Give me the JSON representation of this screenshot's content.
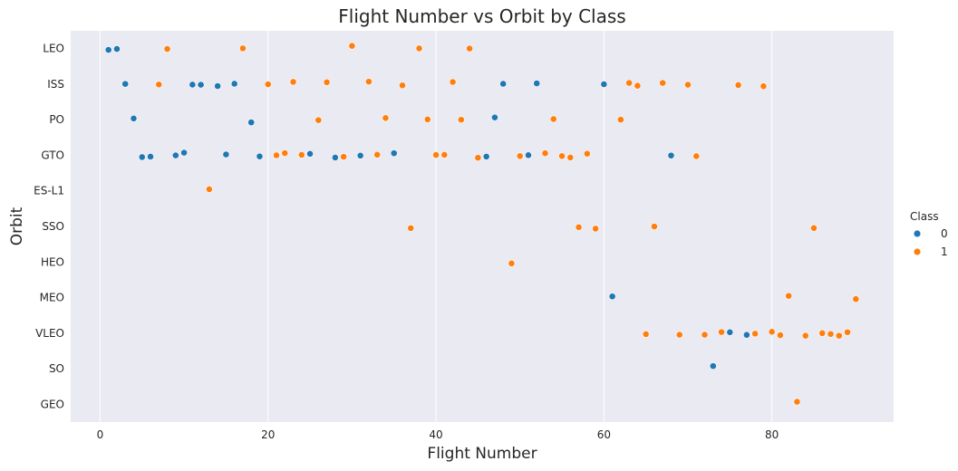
{
  "chart_data": {
    "type": "scatter",
    "title": "Flight Number vs Orbit by Class",
    "xlabel": "Flight Number",
    "ylabel": "Orbit",
    "xlim": [
      -3.5,
      94.5
    ],
    "xticks": [
      0,
      20,
      40,
      60,
      80
    ],
    "categories": [
      "LEO",
      "ISS",
      "PO",
      "GTO",
      "ES-L1",
      "SSO",
      "HEO",
      "MEO",
      "VLEO",
      "SO",
      "GEO"
    ],
    "grid": true,
    "legend": {
      "title": "Class",
      "placement": "right",
      "entries": [
        "0",
        "1"
      ]
    },
    "colors": {
      "0": "#1f77b4",
      "1": "#ff7f0e",
      "plot_background": "#eaeaf2",
      "grid": "#ffffff"
    },
    "series": [
      {
        "name": "0",
        "points": [
          {
            "x": 1,
            "y": "LEO"
          },
          {
            "x": 2,
            "y": "LEO"
          },
          {
            "x": 3,
            "y": "ISS"
          },
          {
            "x": 4,
            "y": "PO"
          },
          {
            "x": 5,
            "y": "GTO"
          },
          {
            "x": 6,
            "y": "GTO"
          },
          {
            "x": 9,
            "y": "GTO"
          },
          {
            "x": 10,
            "y": "GTO"
          },
          {
            "x": 11,
            "y": "ISS"
          },
          {
            "x": 12,
            "y": "ISS"
          },
          {
            "x": 14,
            "y": "ISS"
          },
          {
            "x": 15,
            "y": "GTO"
          },
          {
            "x": 16,
            "y": "ISS"
          },
          {
            "x": 18,
            "y": "PO"
          },
          {
            "x": 19,
            "y": "GTO"
          },
          {
            "x": 25,
            "y": "GTO"
          },
          {
            "x": 28,
            "y": "GTO"
          },
          {
            "x": 31,
            "y": "GTO"
          },
          {
            "x": 35,
            "y": "GTO"
          },
          {
            "x": 46,
            "y": "GTO"
          },
          {
            "x": 47,
            "y": "PO"
          },
          {
            "x": 48,
            "y": "ISS"
          },
          {
            "x": 51,
            "y": "GTO"
          },
          {
            "x": 52,
            "y": "ISS"
          },
          {
            "x": 60,
            "y": "ISS"
          },
          {
            "x": 61,
            "y": "MEO"
          },
          {
            "x": 68,
            "y": "GTO"
          },
          {
            "x": 73,
            "y": "SO"
          },
          {
            "x": 75,
            "y": "VLEO"
          },
          {
            "x": 77,
            "y": "VLEO"
          }
        ]
      },
      {
        "name": "1",
        "points": [
          {
            "x": 7,
            "y": "ISS"
          },
          {
            "x": 8,
            "y": "LEO"
          },
          {
            "x": 13,
            "y": "ES-L1"
          },
          {
            "x": 17,
            "y": "LEO"
          },
          {
            "x": 20,
            "y": "ISS"
          },
          {
            "x": 21,
            "y": "GTO"
          },
          {
            "x": 22,
            "y": "GTO"
          },
          {
            "x": 23,
            "y": "ISS"
          },
          {
            "x": 24,
            "y": "GTO"
          },
          {
            "x": 26,
            "y": "PO"
          },
          {
            "x": 27,
            "y": "ISS"
          },
          {
            "x": 29,
            "y": "GTO"
          },
          {
            "x": 30,
            "y": "LEO"
          },
          {
            "x": 32,
            "y": "ISS"
          },
          {
            "x": 33,
            "y": "GTO"
          },
          {
            "x": 34,
            "y": "PO"
          },
          {
            "x": 36,
            "y": "ISS"
          },
          {
            "x": 37,
            "y": "SSO"
          },
          {
            "x": 38,
            "y": "LEO"
          },
          {
            "x": 39,
            "y": "PO"
          },
          {
            "x": 40,
            "y": "GTO"
          },
          {
            "x": 41,
            "y": "GTO"
          },
          {
            "x": 42,
            "y": "ISS"
          },
          {
            "x": 43,
            "y": "PO"
          },
          {
            "x": 44,
            "y": "LEO"
          },
          {
            "x": 45,
            "y": "GTO"
          },
          {
            "x": 49,
            "y": "HEO"
          },
          {
            "x": 50,
            "y": "GTO"
          },
          {
            "x": 53,
            "y": "GTO"
          },
          {
            "x": 54,
            "y": "PO"
          },
          {
            "x": 55,
            "y": "GTO"
          },
          {
            "x": 56,
            "y": "GTO"
          },
          {
            "x": 57,
            "y": "SSO"
          },
          {
            "x": 58,
            "y": "GTO"
          },
          {
            "x": 59,
            "y": "SSO"
          },
          {
            "x": 62,
            "y": "PO"
          },
          {
            "x": 63,
            "y": "ISS"
          },
          {
            "x": 64,
            "y": "ISS"
          },
          {
            "x": 65,
            "y": "VLEO"
          },
          {
            "x": 66,
            "y": "SSO"
          },
          {
            "x": 67,
            "y": "ISS"
          },
          {
            "x": 69,
            "y": "VLEO"
          },
          {
            "x": 70,
            "y": "ISS"
          },
          {
            "x": 71,
            "y": "GTO"
          },
          {
            "x": 72,
            "y": "VLEO"
          },
          {
            "x": 74,
            "y": "VLEO"
          },
          {
            "x": 76,
            "y": "ISS"
          },
          {
            "x": 78,
            "y": "VLEO"
          },
          {
            "x": 79,
            "y": "ISS"
          },
          {
            "x": 80,
            "y": "VLEO"
          },
          {
            "x": 81,
            "y": "VLEO"
          },
          {
            "x": 82,
            "y": "MEO"
          },
          {
            "x": 83,
            "y": "GEO"
          },
          {
            "x": 84,
            "y": "VLEO"
          },
          {
            "x": 85,
            "y": "SSO"
          },
          {
            "x": 86,
            "y": "VLEO"
          },
          {
            "x": 87,
            "y": "VLEO"
          },
          {
            "x": 88,
            "y": "VLEO"
          },
          {
            "x": 89,
            "y": "VLEO"
          },
          {
            "x": 90,
            "y": "MEO"
          }
        ]
      }
    ]
  }
}
